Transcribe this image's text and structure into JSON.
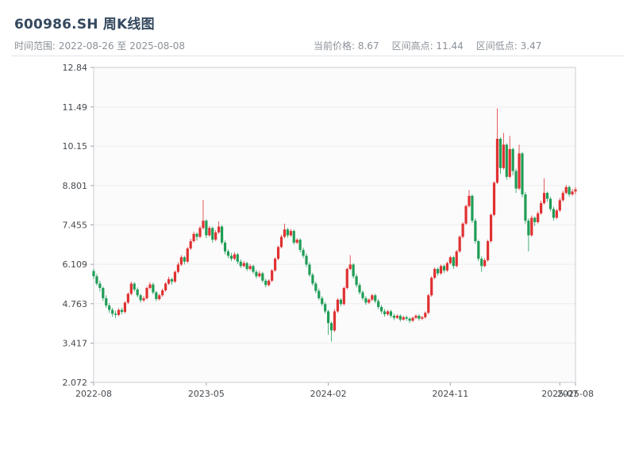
{
  "header": {
    "title": "600986.SH 周K线图",
    "time_range_label": "时间范围: 2022-08-26 至 2025-08-08",
    "stats": {
      "current_price_label": "当前价格: 8.67",
      "range_high_label": "区间高点: 11.44",
      "range_low_label": "区间低点: 3.47"
    }
  },
  "chart_data": {
    "type": "candlestick",
    "title": "600986.SH 周K线图",
    "frequency": "weekly",
    "date_start": "2022-08-26",
    "date_end": "2025-08-08",
    "current_price": 8.67,
    "range_high": 11.44,
    "range_low": 3.47,
    "ylim": [
      2.072,
      12.84
    ],
    "y_tick_labels": [
      "2.072",
      "3.417",
      "4.763",
      "6.109",
      "7.455",
      "8.801",
      "10.15",
      "11.49",
      "12.84"
    ],
    "x_ticks": [
      {
        "label": "2022-08",
        "index": 0
      },
      {
        "label": "2023-05",
        "index": 36
      },
      {
        "label": "2024-02",
        "index": 75
      },
      {
        "label": "2024-11",
        "index": 114
      },
      {
        "label": "2025-07",
        "index": 149
      },
      {
        "label": "2025-08",
        "index": 154
      }
    ],
    "grid": true,
    "legend": "none",
    "up_color": "#e03131",
    "down_color": "#1f9d55",
    "grid_color": "#ececee",
    "axis_color": "#c9cdd2",
    "plot_bg": "#fbfbfc",
    "tick_text_color": "#44494e",
    "candles_ohlc": [
      [
        5.88,
        5.95,
        5.6,
        5.7
      ],
      [
        5.7,
        5.78,
        5.38,
        5.45
      ],
      [
        5.45,
        5.55,
        5.18,
        5.3
      ],
      [
        5.3,
        5.35,
        4.85,
        4.95
      ],
      [
        4.95,
        5.05,
        4.62,
        4.7
      ],
      [
        4.7,
        4.78,
        4.45,
        4.55
      ],
      [
        4.55,
        4.62,
        4.32,
        4.42
      ],
      [
        4.42,
        4.52,
        4.28,
        4.38
      ],
      [
        4.38,
        4.6,
        4.33,
        4.55
      ],
      [
        4.55,
        4.62,
        4.4,
        4.48
      ],
      [
        4.48,
        4.85,
        4.44,
        4.8
      ],
      [
        4.8,
        5.15,
        4.75,
        5.1
      ],
      [
        5.1,
        5.52,
        5.05,
        5.45
      ],
      [
        5.45,
        5.5,
        5.18,
        5.25
      ],
      [
        5.25,
        5.32,
        4.98,
        5.05
      ],
      [
        5.05,
        5.1,
        4.8,
        4.88
      ],
      [
        4.88,
        5.02,
        4.82,
        4.95
      ],
      [
        4.95,
        5.35,
        4.9,
        5.3
      ],
      [
        5.3,
        5.5,
        5.25,
        5.42
      ],
      [
        5.42,
        5.48,
        5.08,
        5.15
      ],
      [
        5.15,
        5.2,
        4.85,
        4.92
      ],
      [
        4.92,
        5.1,
        4.87,
        5.05
      ],
      [
        5.05,
        5.28,
        5.0,
        5.22
      ],
      [
        5.22,
        5.5,
        5.17,
        5.45
      ],
      [
        5.45,
        5.68,
        5.4,
        5.6
      ],
      [
        5.6,
        5.65,
        5.42,
        5.52
      ],
      [
        5.52,
        5.9,
        5.47,
        5.85
      ],
      [
        5.85,
        6.18,
        5.8,
        6.1
      ],
      [
        6.1,
        6.42,
        6.05,
        6.35
      ],
      [
        6.35,
        6.4,
        6.1,
        6.2
      ],
      [
        6.2,
        6.7,
        6.15,
        6.65
      ],
      [
        6.65,
        6.98,
        6.6,
        6.9
      ],
      [
        6.9,
        7.22,
        6.85,
        7.15
      ],
      [
        7.15,
        7.2,
        6.92,
        7.05
      ],
      [
        7.05,
        7.42,
        7.0,
        7.35
      ],
      [
        7.35,
        8.31,
        7.3,
        7.6
      ],
      [
        7.6,
        7.65,
        7.0,
        7.1
      ],
      [
        7.1,
        7.42,
        7.05,
        7.35
      ],
      [
        7.35,
        7.4,
        6.85,
        6.95
      ],
      [
        6.95,
        7.28,
        6.9,
        7.2
      ],
      [
        7.2,
        7.58,
        7.15,
        7.4
      ],
      [
        7.4,
        7.45,
        6.78,
        6.85
      ],
      [
        6.85,
        6.92,
        6.45,
        6.55
      ],
      [
        6.55,
        6.62,
        6.32,
        6.4
      ],
      [
        6.4,
        6.5,
        6.22,
        6.3
      ],
      [
        6.3,
        6.52,
        6.25,
        6.45
      ],
      [
        6.45,
        6.5,
        6.12,
        6.2
      ],
      [
        6.2,
        6.28,
        5.98,
        6.05
      ],
      [
        6.05,
        6.22,
        6.0,
        6.15
      ],
      [
        6.15,
        6.2,
        5.88,
        5.95
      ],
      [
        5.95,
        6.12,
        5.9,
        6.05
      ],
      [
        6.05,
        6.1,
        5.78,
        5.85
      ],
      [
        5.85,
        5.92,
        5.62,
        5.7
      ],
      [
        5.7,
        5.88,
        5.65,
        5.8
      ],
      [
        5.8,
        5.85,
        5.48,
        5.55
      ],
      [
        5.55,
        5.62,
        5.32,
        5.4
      ],
      [
        5.4,
        5.6,
        5.35,
        5.55
      ],
      [
        5.55,
        5.95,
        5.5,
        5.9
      ],
      [
        5.9,
        6.35,
        5.85,
        6.3
      ],
      [
        6.3,
        6.75,
        6.25,
        6.7
      ],
      [
        6.7,
        7.12,
        6.65,
        7.05
      ],
      [
        7.05,
        7.5,
        7.0,
        7.3
      ],
      [
        7.3,
        7.35,
        7.02,
        7.1
      ],
      [
        7.1,
        7.32,
        7.05,
        7.25
      ],
      [
        7.25,
        7.3,
        6.78,
        6.85
      ],
      [
        6.85,
        7.0,
        6.8,
        6.95
      ],
      [
        6.95,
        7.0,
        6.52,
        6.6
      ],
      [
        6.6,
        6.68,
        6.32,
        6.4
      ],
      [
        6.4,
        6.48,
        6.02,
        6.1
      ],
      [
        6.1,
        6.18,
        5.68,
        5.75
      ],
      [
        5.75,
        5.82,
        5.38,
        5.45
      ],
      [
        5.45,
        5.52,
        5.12,
        5.2
      ],
      [
        5.2,
        5.28,
        4.88,
        4.95
      ],
      [
        4.95,
        5.02,
        4.68,
        4.75
      ],
      [
        4.75,
        4.82,
        4.42,
        4.5
      ],
      [
        4.5,
        4.55,
        3.7,
        4.1
      ],
      [
        4.1,
        4.15,
        3.47,
        3.85
      ],
      [
        3.85,
        4.58,
        3.8,
        4.5
      ],
      [
        4.5,
        4.95,
        4.45,
        4.9
      ],
      [
        4.9,
        4.95,
        4.68,
        4.75
      ],
      [
        4.75,
        5.35,
        4.7,
        5.3
      ],
      [
        5.3,
        6.0,
        5.25,
        5.95
      ],
      [
        5.95,
        6.42,
        5.9,
        6.1
      ],
      [
        6.1,
        6.15,
        5.62,
        5.7
      ],
      [
        5.7,
        5.78,
        5.32,
        5.4
      ],
      [
        5.4,
        5.48,
        5.08,
        5.15
      ],
      [
        5.15,
        5.22,
        4.88,
        4.95
      ],
      [
        4.95,
        5.02,
        4.72,
        4.8
      ],
      [
        4.8,
        4.95,
        4.75,
        4.9
      ],
      [
        4.9,
        5.1,
        4.85,
        5.05
      ],
      [
        5.05,
        5.1,
        4.78,
        4.85
      ],
      [
        4.85,
        4.92,
        4.58,
        4.65
      ],
      [
        4.65,
        4.72,
        4.42,
        4.5
      ],
      [
        4.5,
        4.58,
        4.32,
        4.4
      ],
      [
        4.4,
        4.55,
        4.35,
        4.5
      ],
      [
        4.5,
        4.55,
        4.28,
        4.35
      ],
      [
        4.35,
        4.42,
        4.2,
        4.28
      ],
      [
        4.28,
        4.4,
        4.24,
        4.35
      ],
      [
        4.35,
        4.4,
        4.15,
        4.22
      ],
      [
        4.22,
        4.35,
        4.18,
        4.3
      ],
      [
        4.3,
        4.35,
        4.18,
        4.25
      ],
      [
        4.25,
        4.3,
        4.1,
        4.18
      ],
      [
        4.18,
        4.32,
        4.14,
        4.28
      ],
      [
        4.28,
        4.4,
        4.24,
        4.35
      ],
      [
        4.35,
        4.4,
        4.18,
        4.25
      ],
      [
        4.25,
        4.35,
        4.2,
        4.3
      ],
      [
        4.3,
        4.5,
        4.25,
        4.45
      ],
      [
        4.45,
        5.1,
        4.4,
        5.05
      ],
      [
        5.05,
        5.7,
        5.0,
        5.65
      ],
      [
        5.65,
        6.0,
        5.6,
        5.95
      ],
      [
        5.95,
        6.0,
        5.72,
        5.8
      ],
      [
        5.8,
        6.1,
        5.75,
        6.05
      ],
      [
        6.05,
        6.1,
        5.82,
        5.9
      ],
      [
        5.9,
        6.2,
        5.85,
        6.15
      ],
      [
        6.15,
        6.4,
        6.1,
        6.35
      ],
      [
        6.35,
        6.4,
        5.95,
        6.05
      ],
      [
        6.05,
        6.6,
        6.0,
        6.55
      ],
      [
        6.55,
        7.1,
        6.5,
        7.05
      ],
      [
        7.05,
        7.55,
        7.0,
        7.5
      ],
      [
        7.5,
        8.15,
        7.45,
        8.1
      ],
      [
        8.1,
        8.65,
        8.05,
        8.45
      ],
      [
        8.45,
        8.5,
        7.52,
        7.6
      ],
      [
        7.6,
        7.68,
        6.82,
        6.9
      ],
      [
        6.9,
        6.95,
        6.22,
        6.3
      ],
      [
        6.3,
        6.38,
        5.85,
        6.05
      ],
      [
        6.05,
        6.32,
        6.0,
        6.25
      ],
      [
        6.25,
        6.95,
        6.2,
        6.9
      ],
      [
        6.9,
        7.85,
        6.85,
        7.8
      ],
      [
        7.8,
        8.95,
        7.75,
        8.9
      ],
      [
        8.9,
        11.44,
        8.85,
        10.4
      ],
      [
        10.4,
        10.45,
        9.2,
        9.4
      ],
      [
        9.4,
        10.6,
        9.35,
        10.2
      ],
      [
        10.2,
        10.25,
        9.0,
        9.1
      ],
      [
        9.1,
        10.5,
        9.05,
        10.05
      ],
      [
        10.05,
        10.1,
        9.15,
        9.3
      ],
      [
        9.3,
        9.38,
        8.55,
        8.7
      ],
      [
        8.7,
        10.2,
        8.65,
        9.9
      ],
      [
        9.9,
        9.95,
        8.4,
        8.5
      ],
      [
        8.5,
        8.58,
        7.5,
        7.6
      ],
      [
        7.6,
        7.68,
        6.55,
        7.1
      ],
      [
        7.1,
        7.78,
        7.05,
        7.7
      ],
      [
        7.7,
        7.75,
        7.42,
        7.55
      ],
      [
        7.55,
        7.92,
        7.5,
        7.85
      ],
      [
        7.85,
        8.28,
        7.8,
        8.2
      ],
      [
        8.2,
        9.05,
        8.15,
        8.55
      ],
      [
        8.55,
        8.6,
        8.25,
        8.35
      ],
      [
        8.35,
        8.42,
        7.92,
        8.0
      ],
      [
        8.0,
        8.08,
        7.6,
        7.7
      ],
      [
        7.7,
        8.0,
        7.65,
        7.95
      ],
      [
        7.95,
        8.38,
        7.9,
        8.3
      ],
      [
        8.3,
        8.62,
        8.25,
        8.55
      ],
      [
        8.55,
        8.82,
        8.5,
        8.75
      ],
      [
        8.75,
        8.8,
        8.42,
        8.5
      ],
      [
        8.5,
        8.68,
        8.45,
        8.6
      ],
      [
        8.6,
        8.75,
        8.5,
        8.67
      ]
    ]
  }
}
